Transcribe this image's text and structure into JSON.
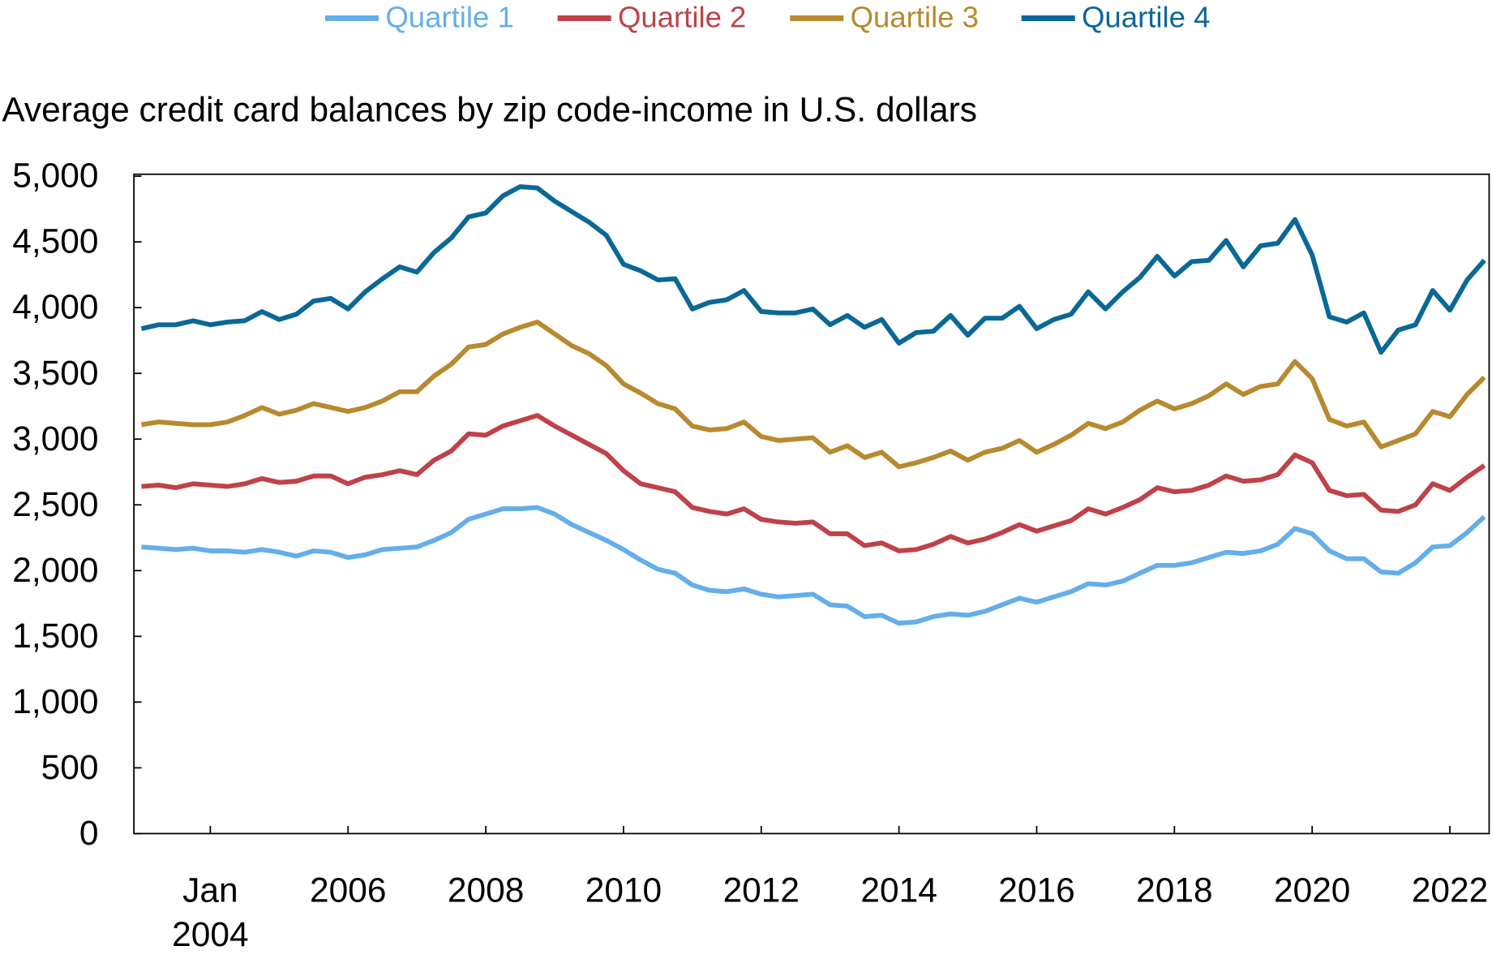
{
  "chart_data": {
    "type": "line",
    "title": "Average credit card balances by zip code-income in U.S. dollars",
    "x": [
      2003,
      2003.25,
      2003.5,
      2003.75,
      2004,
      2004.25,
      2004.5,
      2004.75,
      2005,
      2005.25,
      2005.5,
      2005.75,
      2006,
      2006.25,
      2006.5,
      2006.75,
      2007,
      2007.25,
      2007.5,
      2007.75,
      2008,
      2008.25,
      2008.5,
      2008.75,
      2009,
      2009.25,
      2009.5,
      2009.75,
      2010,
      2010.25,
      2010.5,
      2010.75,
      2011,
      2011.25,
      2011.5,
      2011.75,
      2012,
      2012.25,
      2012.5,
      2012.75,
      2013,
      2013.25,
      2013.5,
      2013.75,
      2014,
      2014.25,
      2014.5,
      2014.75,
      2015,
      2015.25,
      2015.5,
      2015.75,
      2016,
      2016.25,
      2016.5,
      2016.75,
      2017,
      2017.25,
      2017.5,
      2017.75,
      2018,
      2018.25,
      2018.5,
      2018.75,
      2019,
      2019.25,
      2019.5,
      2019.75,
      2020,
      2020.25,
      2020.5,
      2020.75,
      2021,
      2021.25,
      2021.5,
      2021.75,
      2022,
      2022.25,
      2022.5
    ],
    "series": [
      {
        "name": "Quartile 1",
        "color": "#64aeea",
        "values": [
          2180,
          2170,
          2160,
          2170,
          2150,
          2150,
          2140,
          2160,
          2140,
          2110,
          2150,
          2140,
          2100,
          2120,
          2160,
          2170,
          2180,
          2230,
          2290,
          2390,
          2430,
          2470,
          2470,
          2480,
          2430,
          2350,
          2290,
          2230,
          2160,
          2080,
          2010,
          1980,
          1890,
          1850,
          1840,
          1860,
          1820,
          1800,
          1810,
          1820,
          1740,
          1730,
          1650,
          1660,
          1600,
          1610,
          1650,
          1670,
          1660,
          1690,
          1740,
          1790,
          1760,
          1800,
          1840,
          1900,
          1890,
          1920,
          1980,
          2040,
          2040,
          2060,
          2100,
          2140,
          2130,
          2150,
          2200,
          2320,
          2280,
          2150,
          2090,
          2090,
          1990,
          1980,
          2060,
          2180,
          2190,
          2290,
          2410
        ]
      },
      {
        "name": "Quartile 2",
        "color": "#bf4249",
        "values": [
          2640,
          2650,
          2630,
          2660,
          2650,
          2640,
          2660,
          2700,
          2670,
          2680,
          2720,
          2720,
          2660,
          2710,
          2730,
          2760,
          2730,
          2840,
          2910,
          3040,
          3030,
          3100,
          3140,
          3180,
          3100,
          3030,
          2960,
          2890,
          2760,
          2660,
          2630,
          2600,
          2480,
          2450,
          2430,
          2470,
          2390,
          2370,
          2360,
          2370,
          2280,
          2280,
          2190,
          2210,
          2150,
          2160,
          2200,
          2260,
          2210,
          2240,
          2290,
          2350,
          2300,
          2340,
          2380,
          2470,
          2430,
          2480,
          2540,
          2630,
          2600,
          2610,
          2650,
          2720,
          2680,
          2690,
          2730,
          2880,
          2820,
          2610,
          2570,
          2580,
          2460,
          2450,
          2500,
          2660,
          2610,
          2710,
          2800
        ]
      },
      {
        "name": "Quartile 3",
        "color": "#b8892e",
        "values": [
          3110,
          3130,
          3120,
          3110,
          3110,
          3130,
          3180,
          3240,
          3190,
          3220,
          3270,
          3240,
          3210,
          3240,
          3290,
          3360,
          3360,
          3480,
          3570,
          3700,
          3720,
          3800,
          3850,
          3890,
          3800,
          3710,
          3650,
          3560,
          3420,
          3350,
          3270,
          3230,
          3100,
          3070,
          3080,
          3130,
          3020,
          2990,
          3000,
          3010,
          2900,
          2950,
          2860,
          2900,
          2790,
          2820,
          2860,
          2910,
          2840,
          2900,
          2930,
          2990,
          2900,
          2960,
          3030,
          3120,
          3080,
          3130,
          3220,
          3290,
          3230,
          3270,
          3330,
          3420,
          3340,
          3400,
          3420,
          3590,
          3460,
          3150,
          3100,
          3130,
          2940,
          2990,
          3040,
          3210,
          3170,
          3340,
          3470
        ]
      },
      {
        "name": "Quartile 4",
        "color": "#0a6896",
        "values": [
          3840,
          3870,
          3870,
          3900,
          3870,
          3890,
          3900,
          3970,
          3910,
          3950,
          4050,
          4070,
          3990,
          4120,
          4220,
          4310,
          4270,
          4420,
          4530,
          4690,
          4720,
          4850,
          4920,
          4910,
          4810,
          4730,
          4650,
          4550,
          4330,
          4280,
          4210,
          4220,
          3990,
          4040,
          4060,
          4130,
          3970,
          3960,
          3960,
          3990,
          3870,
          3940,
          3850,
          3910,
          3730,
          3810,
          3820,
          3940,
          3790,
          3920,
          3920,
          4010,
          3840,
          3910,
          3950,
          4120,
          3990,
          4120,
          4230,
          4390,
          4240,
          4350,
          4360,
          4510,
          4310,
          4470,
          4490,
          4670,
          4400,
          3930,
          3890,
          3960,
          3660,
          3830,
          3870,
          4130,
          3980,
          4210,
          4360
        ]
      }
    ],
    "xlim": [
      2002.89,
      2022.57
    ],
    "xticks": [
      {
        "value": 2004,
        "label": "Jan 2004"
      },
      2006,
      2008,
      2010,
      2012,
      2014,
      2016,
      2018,
      2020,
      2022
    ],
    "ylim": [
      0,
      5000
    ],
    "yticks": [
      0,
      {
        "value": 500,
        "label": "500"
      },
      {
        "value": 1000,
        "label": "1,000"
      },
      {
        "value": 1500,
        "label": "1,500"
      },
      {
        "value": 2000,
        "label": "2,000"
      },
      {
        "value": 2500,
        "label": "2,500"
      },
      {
        "value": 3000,
        "label": "3,000"
      },
      {
        "value": 3500,
        "label": "3,500"
      },
      {
        "value": 4000,
        "label": "4,000"
      },
      {
        "value": 4500,
        "label": "4,500"
      },
      {
        "value": 5000,
        "label": "5,000"
      }
    ],
    "legend": "top"
  }
}
